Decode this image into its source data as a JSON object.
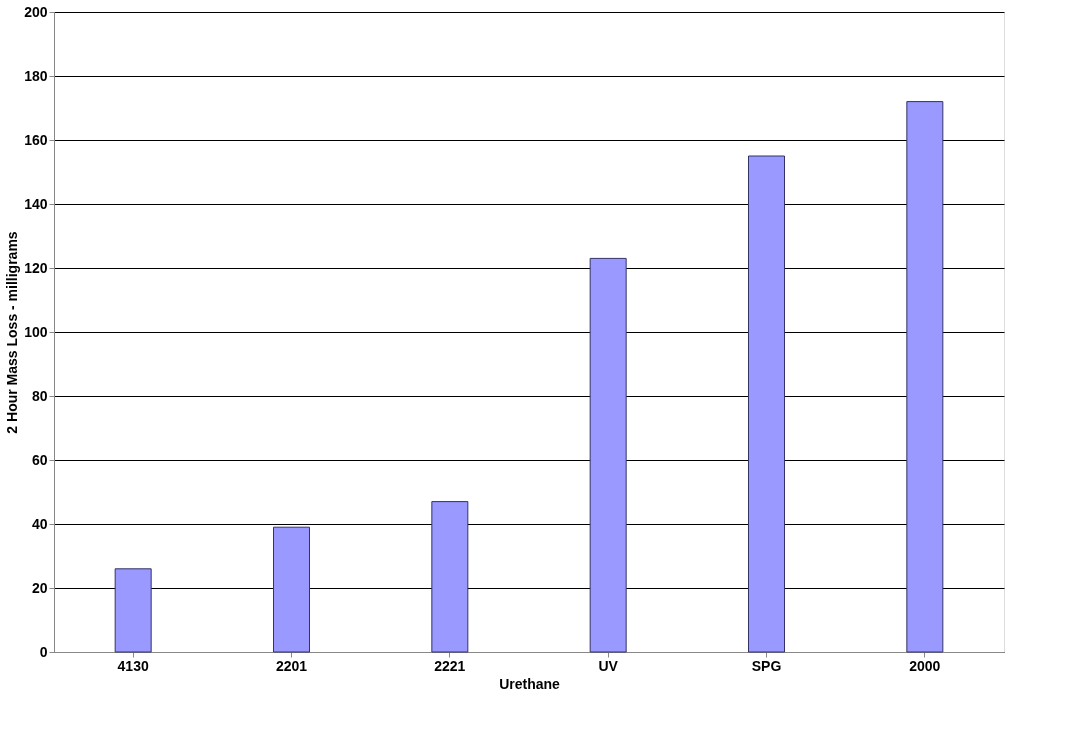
{
  "chart_data": {
    "type": "bar",
    "xlabel": "Urethane",
    "ylabel": "2 Hour Mass Loss - milligrams",
    "categories": [
      "4130",
      "2201",
      "2221",
      "UV",
      "SPG",
      "2000"
    ],
    "values": [
      26,
      39,
      47,
      123,
      155,
      172
    ],
    "color": "#9999ff",
    "ylim": [
      0,
      200
    ],
    "yticks": [
      0,
      20,
      40,
      60,
      80,
      100,
      120,
      140,
      160,
      180,
      200
    ],
    "grid": "y"
  }
}
